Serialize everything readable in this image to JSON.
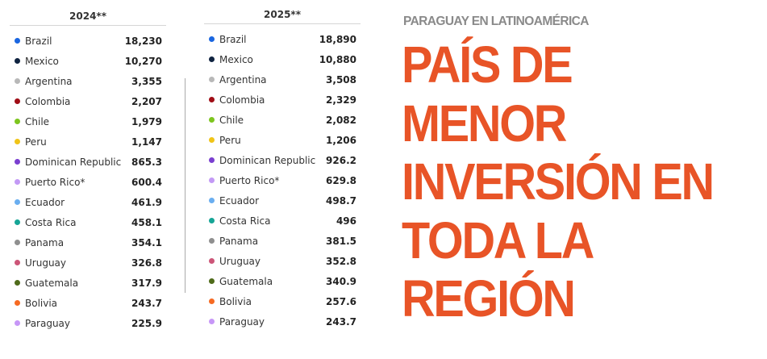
{
  "tables": [
    {
      "header": "2024**",
      "rows": [
        {
          "country": "Brazil",
          "value": "18,230",
          "color": "#1a66e0"
        },
        {
          "country": "Mexico",
          "value": "10,270",
          "color": "#0f2340"
        },
        {
          "country": "Argentina",
          "value": "3,355",
          "color": "#b8b8b8"
        },
        {
          "country": "Colombia",
          "value": "2,207",
          "color": "#a00d16"
        },
        {
          "country": "Chile",
          "value": "1,979",
          "color": "#7dc51f"
        },
        {
          "country": "Peru",
          "value": "1,147",
          "color": "#f0c418"
        },
        {
          "country": "Dominican Republic",
          "value": "865.3",
          "color": "#7a3fd0"
        },
        {
          "country": "Puerto Rico*",
          "value": "600.4",
          "color": "#c39af5"
        },
        {
          "country": "Ecuador",
          "value": "461.9",
          "color": "#6aaef0"
        },
        {
          "country": "Costa Rica",
          "value": "458.1",
          "color": "#16a596"
        },
        {
          "country": "Panama",
          "value": "354.1",
          "color": "#8f8f8f"
        },
        {
          "country": "Uruguay",
          "value": "326.8",
          "color": "#cc5578"
        },
        {
          "country": "Guatemala",
          "value": "317.9",
          "color": "#4f6b1a"
        },
        {
          "country": "Bolivia",
          "value": "243.7",
          "color": "#f66a22"
        },
        {
          "country": "Paraguay",
          "value": "225.9",
          "color": "#c797f7"
        }
      ]
    },
    {
      "header": "2025**",
      "rows": [
        {
          "country": "Brazil",
          "value": "18,890",
          "color": "#1a66e0"
        },
        {
          "country": "Mexico",
          "value": "10,880",
          "color": "#0f2340"
        },
        {
          "country": "Argentina",
          "value": "3,508",
          "color": "#b8b8b8"
        },
        {
          "country": "Colombia",
          "value": "2,329",
          "color": "#a00d16"
        },
        {
          "country": "Chile",
          "value": "2,082",
          "color": "#7dc51f"
        },
        {
          "country": "Peru",
          "value": "1,206",
          "color": "#f0c418"
        },
        {
          "country": "Dominican Republic",
          "value": "926.2",
          "color": "#7a3fd0"
        },
        {
          "country": "Puerto Rico*",
          "value": "629.8",
          "color": "#c39af5"
        },
        {
          "country": "Ecuador",
          "value": "498.7",
          "color": "#6aaef0"
        },
        {
          "country": "Costa Rica",
          "value": "496",
          "color": "#16a596"
        },
        {
          "country": "Panama",
          "value": "381.5",
          "color": "#8f8f8f"
        },
        {
          "country": "Uruguay",
          "value": "352.8",
          "color": "#cc5578"
        },
        {
          "country": "Guatemala",
          "value": "340.9",
          "color": "#4f6b1a"
        },
        {
          "country": "Bolivia",
          "value": "257.6",
          "color": "#f66a22"
        },
        {
          "country": "Paraguay",
          "value": "243.7",
          "color": "#c797f7"
        }
      ]
    }
  ],
  "title": {
    "subtitle": "PARAGUAY EN LATINOAMÉRICA",
    "lines": [
      "PAÍS DE",
      "MENOR",
      "INVERSIÓN EN",
      "TODA LA",
      "REGIÓN"
    ],
    "color": "#e85427"
  }
}
